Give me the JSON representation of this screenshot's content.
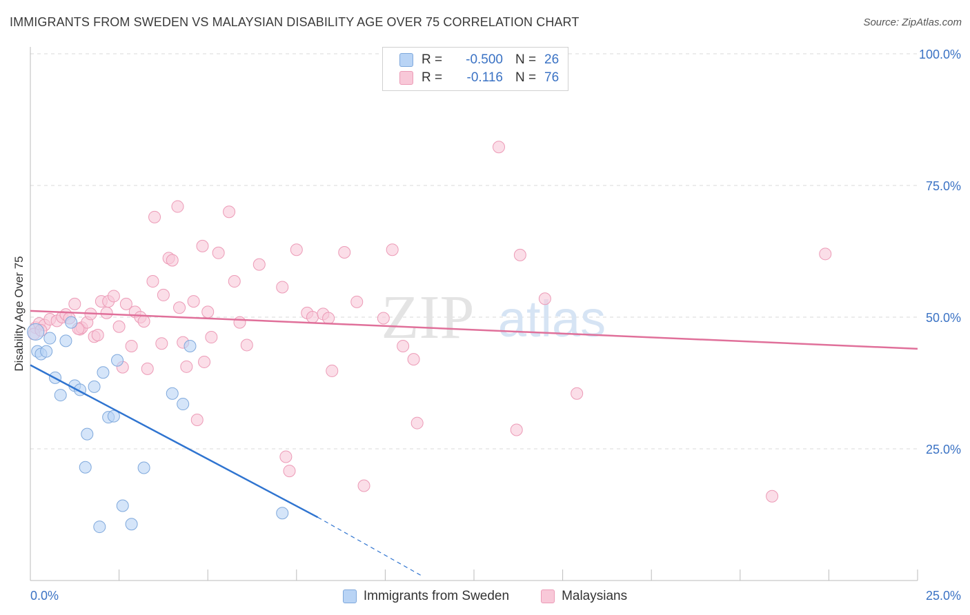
{
  "header": {
    "title": "IMMIGRANTS FROM SWEDEN VS MALAYSIAN DISABILITY AGE OVER 75 CORRELATION CHART",
    "source": "Source: ZipAtlas.com"
  },
  "legend": {
    "rows": [
      {
        "r_label": "R =",
        "r_value": "-0.500",
        "n_label": "N =",
        "n_value": "26"
      },
      {
        "r_label": "R =",
        "r_value": "-0.116",
        "n_label": "N =",
        "n_value": "76"
      }
    ]
  },
  "bottom_legend": {
    "series1": "Immigrants from Sweden",
    "series2": "Malaysians"
  },
  "watermark": {
    "zip": "ZIP",
    "atlas": "atlas"
  },
  "colors": {
    "sweden_fill": "#b9d4f5",
    "sweden_stroke": "#7ea8dc",
    "sweden_line": "#2f74d0",
    "malaysian_fill": "#f8c8d8",
    "malaysian_stroke": "#ec9ab6",
    "malaysian_line": "#e0709a",
    "tick_label": "#3a72c4"
  },
  "chart_data": {
    "type": "scatter",
    "title": "IMMIGRANTS FROM SWEDEN VS MALAYSIAN DISABILITY AGE OVER 75 CORRELATION CHART",
    "xlabel": "",
    "ylabel": "Disability Age Over 75",
    "xlim": [
      0,
      25
    ],
    "ylim": [
      0,
      100
    ],
    "x_tick_labels": [
      "0.0%",
      "25.0%"
    ],
    "y_ticks": [
      25,
      50,
      75,
      100
    ],
    "y_tick_labels": [
      "25.0%",
      "50.0%",
      "75.0%",
      "100.0%"
    ],
    "grid": true,
    "legend_position": "top-center",
    "series": [
      {
        "name": "Immigrants from Sweden",
        "r": -0.5,
        "n": 26,
        "points": [
          [
            0.15,
            47.2
          ],
          [
            0.2,
            43.5
          ],
          [
            0.3,
            43.0
          ],
          [
            0.45,
            43.5
          ],
          [
            0.55,
            46.0
          ],
          [
            1.0,
            45.5
          ],
          [
            1.15,
            49.0
          ],
          [
            0.7,
            38.5
          ],
          [
            0.85,
            35.2
          ],
          [
            1.25,
            37.0
          ],
          [
            1.4,
            36.2
          ],
          [
            1.8,
            36.8
          ],
          [
            2.05,
            39.5
          ],
          [
            2.45,
            41.8
          ],
          [
            2.2,
            31.0
          ],
          [
            2.35,
            31.2
          ],
          [
            1.6,
            27.8
          ],
          [
            1.55,
            21.5
          ],
          [
            3.2,
            21.4
          ],
          [
            2.6,
            14.2
          ],
          [
            1.95,
            10.2
          ],
          [
            2.85,
            10.7
          ],
          [
            4.0,
            35.5
          ],
          [
            4.3,
            33.5
          ],
          [
            4.5,
            44.5
          ],
          [
            7.1,
            12.8
          ]
        ],
        "trend": {
          "x": [
            0,
            8.1
          ],
          "y": [
            40.9,
            12.0
          ],
          "dashed_to": [
            11.0,
            1.0
          ]
        }
      },
      {
        "name": "Malaysians",
        "r": -0.116,
        "n": 76,
        "points": [
          [
            0.15,
            48.0
          ],
          [
            0.25,
            48.8
          ],
          [
            0.4,
            48.5
          ],
          [
            0.55,
            49.6
          ],
          [
            0.75,
            49.3
          ],
          [
            0.9,
            50.0
          ],
          [
            1.0,
            50.5
          ],
          [
            1.1,
            49.8
          ],
          [
            1.25,
            52.5
          ],
          [
            1.4,
            47.7
          ],
          [
            1.45,
            48.0
          ],
          [
            1.6,
            49.0
          ],
          [
            1.7,
            50.6
          ],
          [
            1.8,
            46.3
          ],
          [
            1.9,
            46.6
          ],
          [
            2.0,
            53.0
          ],
          [
            2.15,
            50.8
          ],
          [
            2.2,
            53.0
          ],
          [
            2.35,
            54.0
          ],
          [
            2.5,
            48.2
          ],
          [
            2.6,
            40.5
          ],
          [
            2.7,
            52.5
          ],
          [
            2.85,
            44.5
          ],
          [
            2.95,
            51.0
          ],
          [
            3.1,
            50.0
          ],
          [
            3.2,
            49.2
          ],
          [
            3.3,
            40.2
          ],
          [
            3.45,
            56.8
          ],
          [
            3.5,
            69.0
          ],
          [
            3.7,
            45.0
          ],
          [
            3.75,
            54.2
          ],
          [
            3.9,
            61.2
          ],
          [
            4.0,
            60.8
          ],
          [
            4.15,
            71.0
          ],
          [
            4.2,
            51.8
          ],
          [
            4.3,
            45.2
          ],
          [
            4.4,
            40.6
          ],
          [
            4.6,
            53.0
          ],
          [
            4.7,
            30.5
          ],
          [
            4.85,
            63.5
          ],
          [
            4.9,
            41.5
          ],
          [
            5.0,
            51.0
          ],
          [
            5.1,
            46.2
          ],
          [
            5.3,
            62.2
          ],
          [
            5.6,
            70.0
          ],
          [
            5.75,
            56.8
          ],
          [
            5.9,
            49.0
          ],
          [
            6.1,
            44.7
          ],
          [
            6.45,
            60.0
          ],
          [
            7.1,
            55.7
          ],
          [
            7.2,
            23.5
          ],
          [
            7.3,
            20.8
          ],
          [
            7.5,
            62.8
          ],
          [
            7.8,
            50.8
          ],
          [
            7.95,
            50.0
          ],
          [
            8.25,
            50.6
          ],
          [
            8.4,
            49.8
          ],
          [
            8.5,
            39.8
          ],
          [
            8.85,
            62.3
          ],
          [
            9.2,
            52.9
          ],
          [
            9.4,
            18.0
          ],
          [
            9.95,
            49.8
          ],
          [
            10.2,
            62.8
          ],
          [
            10.5,
            44.5
          ],
          [
            10.8,
            42.0
          ],
          [
            10.9,
            29.9
          ],
          [
            13.2,
            82.3
          ],
          [
            13.7,
            28.6
          ],
          [
            13.8,
            61.8
          ],
          [
            14.5,
            53.5
          ],
          [
            15.4,
            35.5
          ],
          [
            20.9,
            16.0
          ],
          [
            22.4,
            62.0
          ],
          [
            0.1,
            46.8
          ],
          [
            0.3,
            47.5
          ],
          [
            1.35,
            47.8
          ]
        ],
        "trend": {
          "x": [
            0,
            25
          ],
          "y": [
            51.2,
            44.0
          ]
        }
      }
    ]
  }
}
